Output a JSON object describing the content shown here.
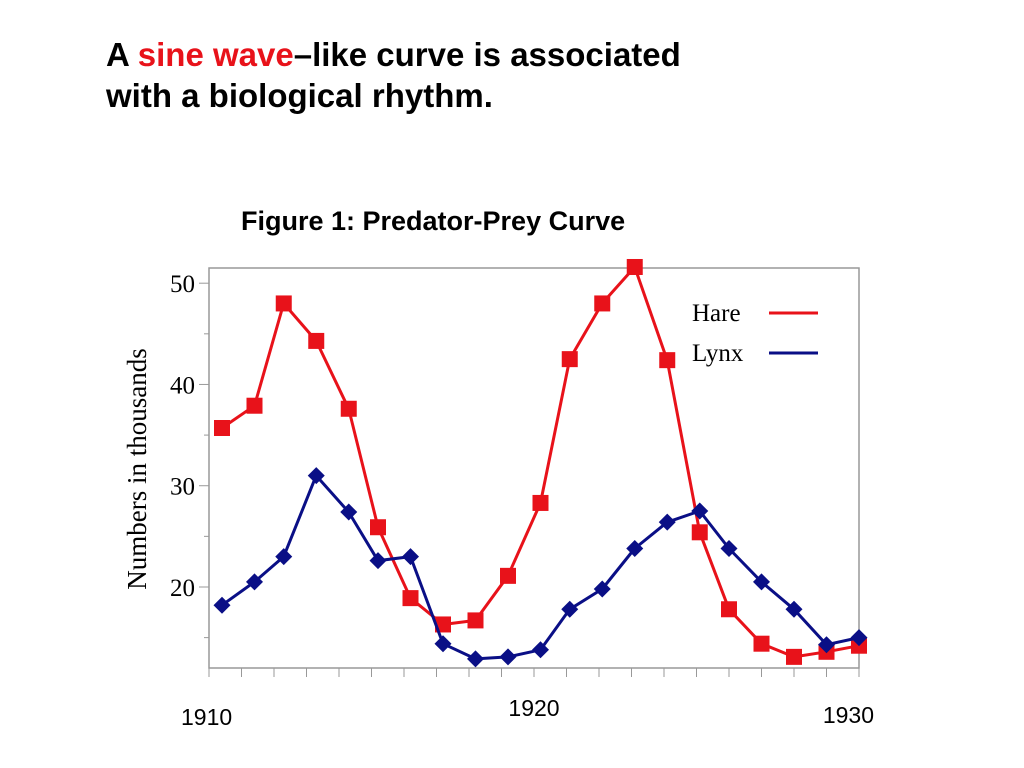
{
  "slide": {
    "title_prefix": "A ",
    "title_highlight": "sine wave",
    "title_line1_rest": "–like curve is associated",
    "title_line2": "with a biological rhythm.",
    "figure_caption": "Figure 1: Predator-Prey Curve"
  },
  "colors": {
    "hare": "#e8121a",
    "lynx": "#0a0f86",
    "accent": "#e8121a",
    "frame": "#999999"
  },
  "chart_data": {
    "type": "line",
    "ylabel": "Numbers in thousands",
    "xlabel": "",
    "xlim": [
      1910,
      1930
    ],
    "ylim": [
      12,
      51.5
    ],
    "x_tick_labels": [
      {
        "label": "1910",
        "value": 1910
      },
      {
        "label": "1920",
        "value": 1920
      },
      {
        "label": "1930",
        "value": 1930
      }
    ],
    "y_ticks": [
      20,
      30,
      40,
      50
    ],
    "grid": false,
    "legend_position": "top-right",
    "series": [
      {
        "name": "Hare",
        "color": "#e8121a",
        "marker": "square",
        "x": [
          1910.4,
          1911.4,
          1912.3,
          1913.3,
          1914.3,
          1915.2,
          1916.2,
          1917.2,
          1918.2,
          1919.2,
          1920.2,
          1921.1,
          1922.1,
          1923.1,
          1924.1,
          1925.1,
          1926.0,
          1927.0,
          1928.0,
          1929.0,
          1930.0
        ],
        "values": [
          35.7,
          37.9,
          48.0,
          44.3,
          37.6,
          25.9,
          18.9,
          16.3,
          16.7,
          21.1,
          28.3,
          42.5,
          48.0,
          51.6,
          42.4,
          25.4,
          17.8,
          14.4,
          13.1,
          13.6,
          14.2
        ]
      },
      {
        "name": "Lynx",
        "color": "#0a0f86",
        "marker": "diamond",
        "x": [
          1910.4,
          1911.4,
          1912.3,
          1913.3,
          1914.3,
          1915.2,
          1916.2,
          1917.2,
          1918.2,
          1919.2,
          1920.2,
          1921.1,
          1922.1,
          1923.1,
          1924.1,
          1925.1,
          1926.0,
          1927.0,
          1928.0,
          1929.0,
          1930.0
        ],
        "values": [
          18.2,
          20.5,
          23.0,
          31.0,
          27.4,
          22.6,
          23.0,
          14.4,
          12.9,
          13.1,
          13.8,
          17.8,
          19.8,
          23.8,
          26.4,
          27.5,
          23.8,
          20.5,
          17.8,
          14.3,
          15.0
        ]
      }
    ]
  }
}
